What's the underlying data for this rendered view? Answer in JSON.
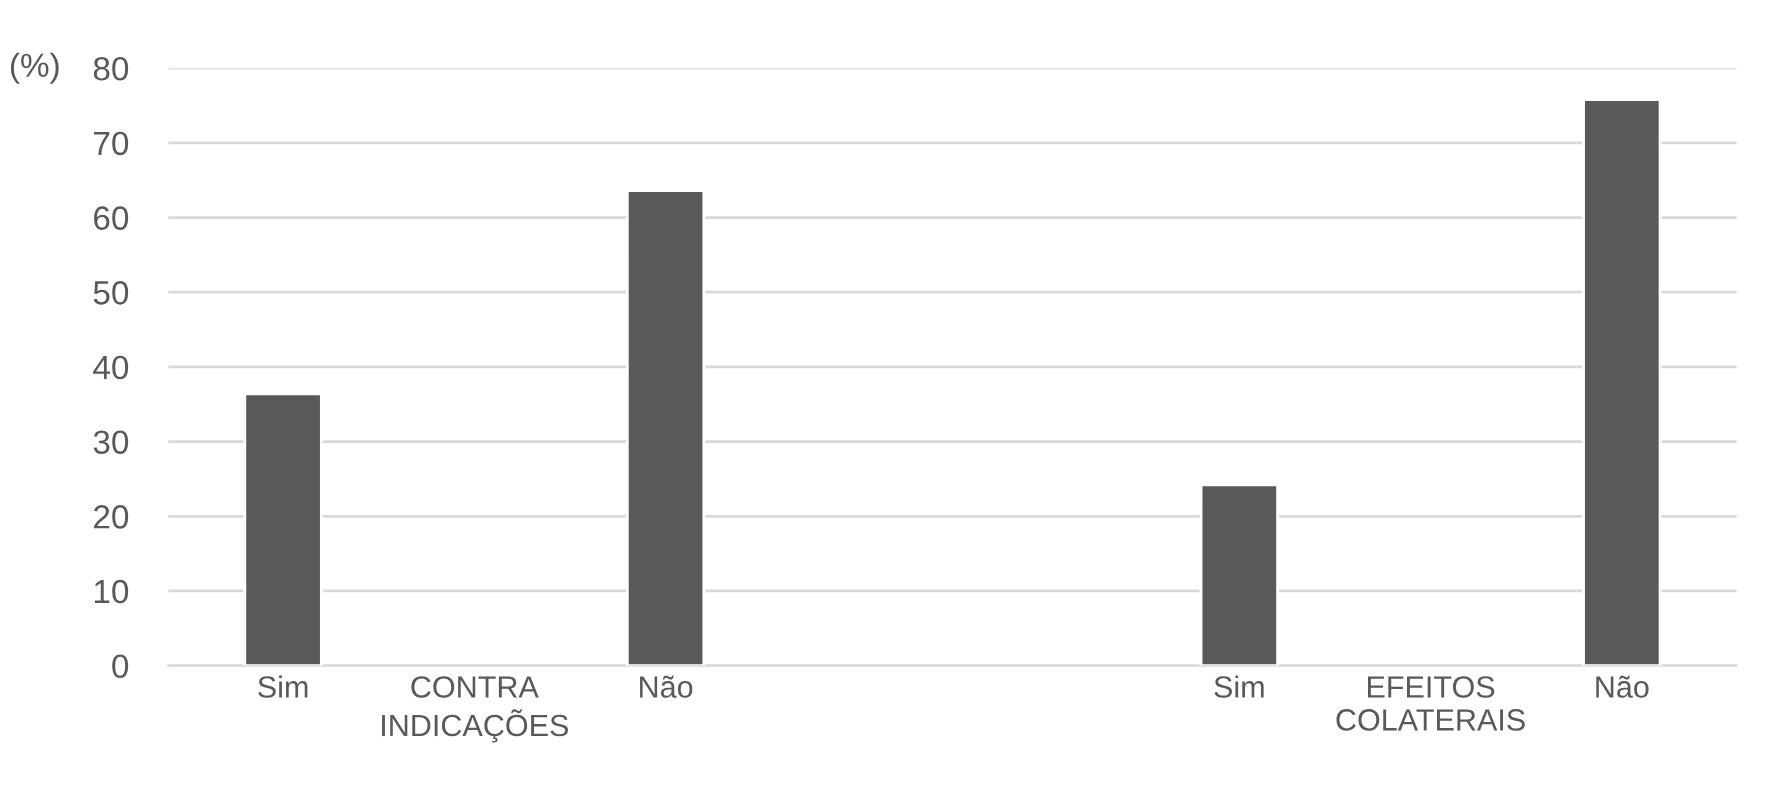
{
  "chart_data": {
    "type": "bar",
    "ylabel": "(%)",
    "categories": [
      "Sim",
      "CONTRA INDICAÇÕES",
      "Não",
      null,
      null,
      "Sim",
      "EFEITOS COLATERAIS",
      "Não"
    ],
    "values": [
      36.4,
      null,
      63.6,
      null,
      null,
      24.2,
      null,
      75.8
    ],
    "color": "#595959",
    "ylim": [
      0,
      80
    ],
    "yticks": [
      0,
      10,
      20,
      30,
      40,
      50,
      60,
      70,
      80
    ],
    "grid": "y",
    "legend": false
  }
}
